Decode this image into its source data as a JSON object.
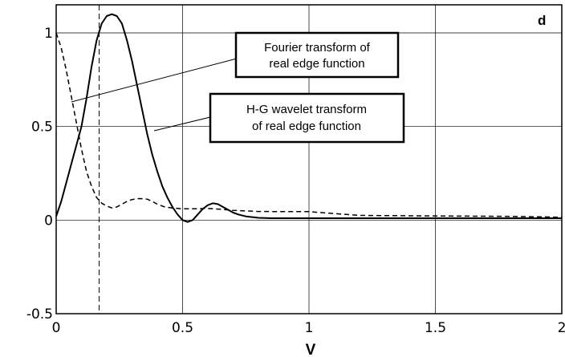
{
  "chart_data": {
    "type": "line",
    "panel_label": "d",
    "xlabel": "V",
    "ylabel": "",
    "xlim": [
      0,
      2
    ],
    "ylim": [
      -0.5,
      1.15
    ],
    "grid": true,
    "x_ticks": [
      {
        "value": 0,
        "label": "0"
      },
      {
        "value": 0.5,
        "label": "0.5"
      },
      {
        "value": 1,
        "label": "1"
      },
      {
        "value": 1.5,
        "label": "1.5"
      },
      {
        "value": 2,
        "label": "2"
      }
    ],
    "y_ticks": [
      {
        "value": -0.5,
        "label": "-0.5"
      },
      {
        "value": 0,
        "label": "0"
      },
      {
        "value": 0.5,
        "label": "0.5"
      },
      {
        "value": 1,
        "label": "1"
      }
    ],
    "vertical_reference_line": 0.17,
    "series": [
      {
        "name": "Fourier transform of real edge function",
        "style": "dashed",
        "x": [
          0,
          0.02,
          0.04,
          0.06,
          0.08,
          0.1,
          0.12,
          0.14,
          0.16,
          0.18,
          0.2,
          0.22,
          0.24,
          0.26,
          0.28,
          0.3,
          0.33,
          0.36,
          0.38,
          0.4,
          0.43,
          0.46,
          0.5,
          0.55,
          0.6,
          0.65,
          0.7,
          0.8,
          0.9,
          1.0,
          1.1,
          1.2,
          1.5,
          1.8,
          2.0
        ],
        "y": [
          1.0,
          0.92,
          0.8,
          0.66,
          0.52,
          0.38,
          0.26,
          0.18,
          0.12,
          0.09,
          0.075,
          0.065,
          0.07,
          0.085,
          0.1,
          0.11,
          0.115,
          0.112,
          0.1,
          0.085,
          0.07,
          0.065,
          0.06,
          0.06,
          0.062,
          0.058,
          0.052,
          0.046,
          0.045,
          0.045,
          0.035,
          0.025,
          0.022,
          0.02,
          0.015
        ]
      },
      {
        "name": "H-G wavelet transform of real edge function",
        "style": "solid",
        "x": [
          0,
          0.02,
          0.04,
          0.06,
          0.08,
          0.1,
          0.12,
          0.14,
          0.16,
          0.18,
          0.2,
          0.22,
          0.24,
          0.26,
          0.28,
          0.3,
          0.32,
          0.34,
          0.36,
          0.38,
          0.4,
          0.42,
          0.44,
          0.46,
          0.48,
          0.5,
          0.52,
          0.54,
          0.56,
          0.58,
          0.6,
          0.62,
          0.64,
          0.66,
          0.68,
          0.7,
          0.72,
          0.75,
          0.8,
          0.85,
          0.9,
          1.0,
          1.2,
          1.5,
          1.8,
          2.0
        ],
        "y": [
          0.02,
          0.1,
          0.2,
          0.3,
          0.4,
          0.5,
          0.65,
          0.82,
          0.96,
          1.05,
          1.09,
          1.1,
          1.09,
          1.05,
          0.96,
          0.85,
          0.72,
          0.59,
          0.46,
          0.35,
          0.26,
          0.18,
          0.12,
          0.07,
          0.03,
          0.0,
          -0.01,
          0.0,
          0.03,
          0.06,
          0.08,
          0.09,
          0.085,
          0.07,
          0.055,
          0.04,
          0.03,
          0.02,
          0.012,
          0.01,
          0.01,
          0.01,
          0.01,
          0.01,
          0.01,
          0.01
        ]
      }
    ],
    "annotations": [
      {
        "lines": [
          "Fourier transform of",
          "real edge function"
        ]
      },
      {
        "lines": [
          "H-G wavelet transform",
          "of real edge function"
        ]
      }
    ]
  }
}
